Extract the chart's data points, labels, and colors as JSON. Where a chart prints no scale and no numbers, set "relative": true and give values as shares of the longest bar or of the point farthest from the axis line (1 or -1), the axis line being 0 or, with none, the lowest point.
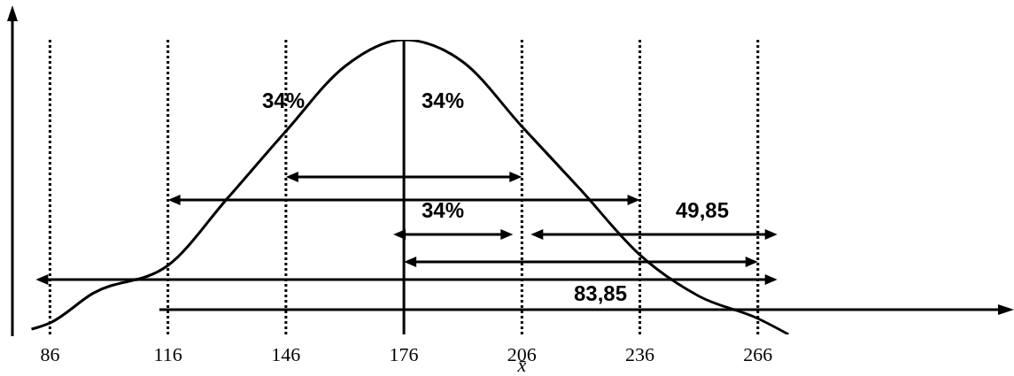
{
  "chart_data": {
    "type": "line",
    "relative": true,
    "xlabel": "x̄",
    "color": "#000000",
    "marker": "none",
    "line_style": "solid",
    "grid": false,
    "legend": false,
    "x": [
      81.3,
      86,
      97,
      116,
      131,
      146,
      161,
      176,
      191,
      206,
      221,
      236,
      251,
      266,
      273.8
    ],
    "values": [
      0.018,
      0.039,
      0.14,
      0.234,
      0.46,
      0.69,
      0.91,
      1,
      0.925,
      0.706,
      0.49,
      0.27,
      0.13,
      0.054,
      0
    ],
    "xlim": [
      76,
      330
    ],
    "xticks": [
      86,
      116,
      146,
      176,
      206,
      236,
      266
    ],
    "ref_lines": [
      {
        "axis": "x",
        "value": 86,
        "line_style": "dotted"
      },
      {
        "axis": "x",
        "value": 116,
        "line_style": "dotted"
      },
      {
        "axis": "x",
        "value": 146,
        "line_style": "dotted"
      },
      {
        "axis": "x",
        "value": 176,
        "line_style": "solid"
      },
      {
        "axis": "x",
        "value": 206,
        "line_style": "dotted"
      },
      {
        "axis": "x",
        "value": 236,
        "line_style": "dotted"
      },
      {
        "axis": "x",
        "value": 266,
        "line_style": "dotted"
      }
    ],
    "annotations": [
      "34%",
      "34%",
      "34%",
      "49,85",
      "83,85"
    ]
  }
}
